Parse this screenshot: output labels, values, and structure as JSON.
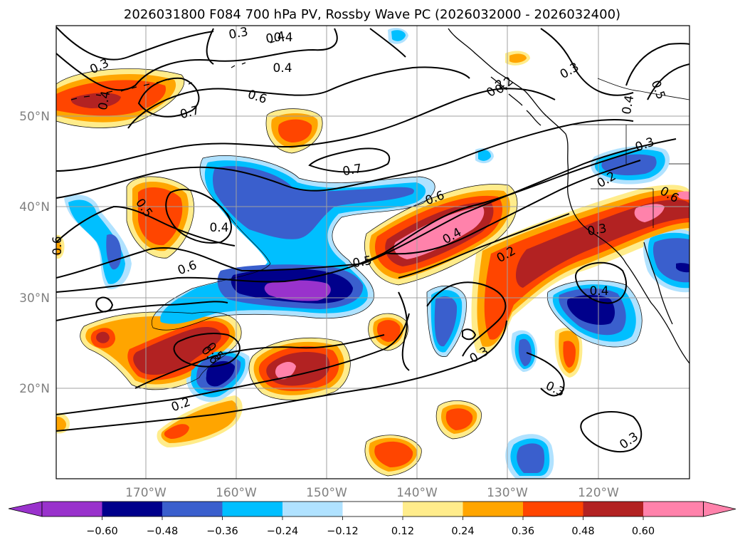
{
  "title": "2026031800 F084 700 hPa PV, Rossby Wave PC (2026032000 - 2026032400)",
  "colors": {
    "background": "#ffffff",
    "frame": "#000000",
    "grid": "#a0a0a0",
    "coast": "#000000",
    "contour": "#000000",
    "tick_label": "#808080",
    "levels": {
      "lt_n060": "#9932cc",
      "n060_n048": "#00008b",
      "n048_n036": "#3a5fcd",
      "n036_n024": "#00bfff",
      "n024_n012": "#b0e2ff",
      "n012_p012": "#ffffff",
      "p012_p024": "#ffec8b",
      "p024_p036": "#ffa500",
      "p036_p048": "#ff4500",
      "p048_p060": "#b22222",
      "gt_p060": "#ff82ab"
    }
  },
  "map": {
    "longitude_labels": [
      "170°W",
      "160°W",
      "150°W",
      "140°W",
      "130°W",
      "120°W"
    ],
    "latitude_labels": [
      "50°N",
      "40°N",
      "30°N",
      "20°N"
    ],
    "gridlines": true
  },
  "colorbar": {
    "tick_labels": [
      "−0.60",
      "−0.48",
      "−0.36",
      "−0.24",
      "−0.12",
      "0.12",
      "0.24",
      "0.36",
      "0.48",
      "0.60"
    ],
    "extend": "both"
  },
  "contour_labels": [
    "0.3",
    "0.4",
    "0.6",
    "0.7",
    "0.4",
    "0.7",
    "0.6",
    "0.4",
    "0.5",
    "0.4",
    "0.6",
    "0.5",
    "0.6",
    "0.4",
    "0.5",
    "0.2",
    "0.3",
    "0.4",
    "0.3",
    "0.2",
    "0.3",
    "0.6",
    "0.2",
    "0.3",
    "0.3",
    "0.3",
    "0.4",
    "0.5",
    "0.6",
    "0.3",
    "0.2",
    "0.4",
    "0.2"
  ]
}
